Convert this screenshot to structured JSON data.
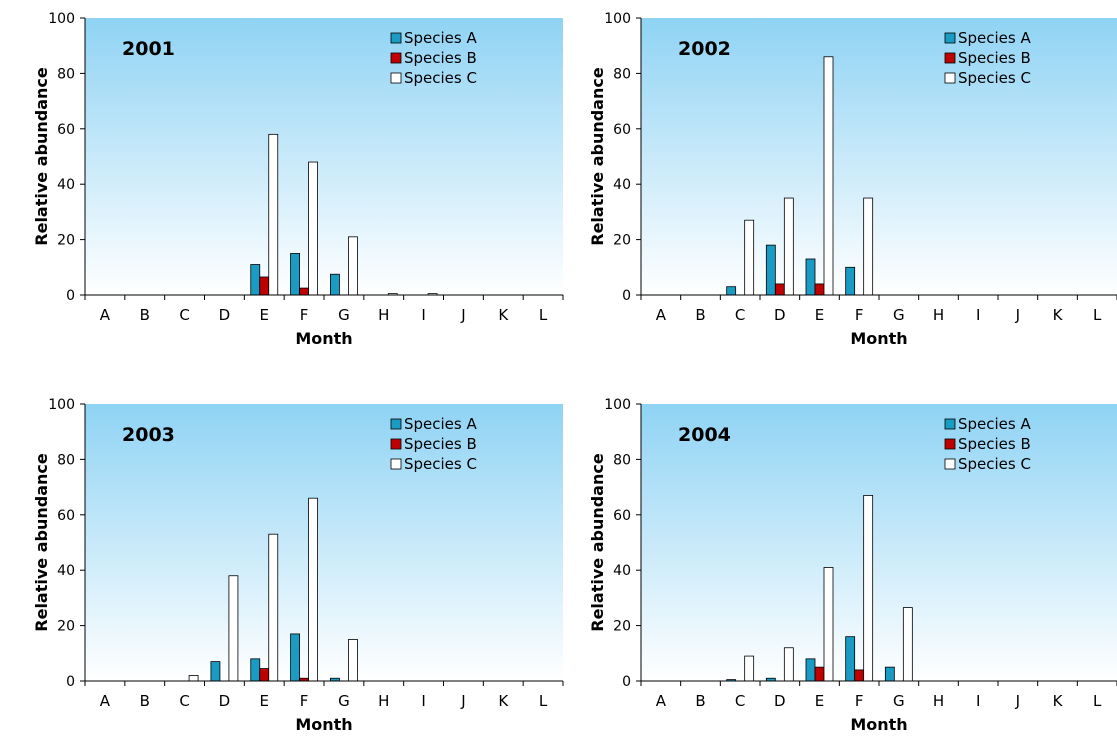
{
  "chart_data": [
    {
      "type": "bar",
      "title": "2001",
      "xlabel": "Month",
      "ylabel": "Relative abundance",
      "ylim": [
        0,
        100
      ],
      "yticks": [
        0,
        20,
        40,
        60,
        80,
        100
      ],
      "legend_position": "top-right",
      "grid": false,
      "categories": [
        "A",
        "B",
        "C",
        "D",
        "E",
        "F",
        "G",
        "H",
        "I",
        "J",
        "K",
        "L"
      ],
      "series": [
        {
          "name": "Species A",
          "color": "#1a9bc4",
          "values": [
            0,
            0,
            0,
            0,
            11,
            15,
            7.5,
            0,
            0,
            0,
            0,
            0
          ]
        },
        {
          "name": "Species B",
          "color": "#c00000",
          "values": [
            0,
            0,
            0,
            0,
            6.5,
            2.5,
            0,
            0,
            0,
            0,
            0,
            0
          ]
        },
        {
          "name": "Species C",
          "color": "#ffffff",
          "values": [
            0,
            0,
            0,
            0,
            58,
            48,
            21,
            0.5,
            0.5,
            0,
            0,
            0
          ]
        }
      ]
    },
    {
      "type": "bar",
      "title": "2002",
      "xlabel": "Month",
      "ylabel": "Relative abundance",
      "ylim": [
        0,
        100
      ],
      "yticks": [
        0,
        20,
        40,
        60,
        80,
        100
      ],
      "legend_position": "top-right",
      "grid": false,
      "categories": [
        "A",
        "B",
        "C",
        "D",
        "E",
        "F",
        "G",
        "H",
        "I",
        "J",
        "K",
        "L"
      ],
      "series": [
        {
          "name": "Species A",
          "color": "#1a9bc4",
          "values": [
            0,
            0,
            3,
            18,
            13,
            10,
            0,
            0,
            0,
            0,
            0,
            0
          ]
        },
        {
          "name": "Species B",
          "color": "#c00000",
          "values": [
            0,
            0,
            0,
            4,
            4,
            0,
            0,
            0,
            0,
            0,
            0,
            0
          ]
        },
        {
          "name": "Species C",
          "color": "#ffffff",
          "values": [
            0,
            0,
            27,
            35,
            86,
            35,
            0,
            0,
            0,
            0,
            0,
            0
          ]
        }
      ]
    },
    {
      "type": "bar",
      "title": "2003",
      "xlabel": "Month",
      "ylabel": "Relative abundance",
      "ylim": [
        0,
        100
      ],
      "yticks": [
        0,
        20,
        40,
        60,
        80,
        100
      ],
      "legend_position": "top-right",
      "grid": false,
      "categories": [
        "A",
        "B",
        "C",
        "D",
        "E",
        "F",
        "G",
        "H",
        "I",
        "J",
        "K",
        "L"
      ],
      "series": [
        {
          "name": "Species A",
          "color": "#1a9bc4",
          "values": [
            0,
            0,
            0,
            7,
            8,
            17,
            1,
            0,
            0,
            0,
            0,
            0
          ]
        },
        {
          "name": "Species B",
          "color": "#c00000",
          "values": [
            0,
            0,
            0,
            0,
            4.5,
            1,
            0,
            0,
            0,
            0,
            0,
            0
          ]
        },
        {
          "name": "Species C",
          "color": "#ffffff",
          "values": [
            0,
            0,
            2,
            38,
            53,
            66,
            15,
            0,
            0,
            0,
            0,
            0
          ]
        }
      ]
    },
    {
      "type": "bar",
      "title": "2004",
      "xlabel": "Month",
      "ylabel": "Relative abundance",
      "ylim": [
        0,
        100
      ],
      "yticks": [
        0,
        20,
        40,
        60,
        80,
        100
      ],
      "legend_position": "top-right",
      "grid": false,
      "categories": [
        "A",
        "B",
        "C",
        "D",
        "E",
        "F",
        "G",
        "H",
        "I",
        "J",
        "K",
        "L"
      ],
      "series": [
        {
          "name": "Species A",
          "color": "#1a9bc4",
          "values": [
            0,
            0,
            0.5,
            1,
            8,
            16,
            5,
            0,
            0,
            0,
            0,
            0
          ]
        },
        {
          "name": "Species B",
          "color": "#c00000",
          "values": [
            0,
            0,
            0,
            0,
            5,
            4,
            0,
            0,
            0,
            0,
            0,
            0
          ]
        },
        {
          "name": "Species C",
          "color": "#ffffff",
          "values": [
            0,
            0,
            9,
            12,
            41,
            67,
            26.5,
            0,
            0,
            0,
            0,
            0
          ]
        }
      ]
    }
  ],
  "style": {
    "plot_bg_top": "#8fd3f4",
    "plot_bg_bottom": "#ffffff",
    "bar_stroke": "#000000"
  }
}
